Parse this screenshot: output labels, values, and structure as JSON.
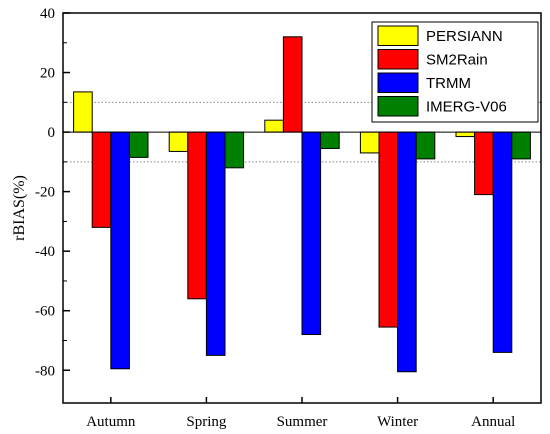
{
  "chart_data": {
    "type": "bar",
    "categories": [
      "Autumn",
      "Spring",
      "Summer",
      "Winter",
      "Annual"
    ],
    "series": [
      {
        "name": "PERSIANN",
        "color": "#ffff00",
        "values": [
          13.5,
          -6.5,
          4,
          -7,
          -1.5
        ]
      },
      {
        "name": "SM2Rain",
        "color": "#ff0000",
        "values": [
          -32,
          -56,
          32,
          -65.5,
          -21
        ]
      },
      {
        "name": "TRMM",
        "color": "#0000ff",
        "values": [
          -79.5,
          -75,
          -68,
          -80.5,
          -74
        ]
      },
      {
        "name": "IMERG-V06",
        "color": "#008000",
        "values": [
          -8.5,
          -12,
          -5.5,
          -9,
          -9
        ]
      }
    ],
    "xlabel": "",
    "ylabel": "rBIAS(%)",
    "ylim": [
      -91,
      40
    ],
    "yticks": [
      40,
      20,
      0,
      -20,
      -40,
      -60,
      -80
    ],
    "reference_lines": [
      10,
      -10
    ],
    "legend_position": "top-right",
    "grid": false
  }
}
